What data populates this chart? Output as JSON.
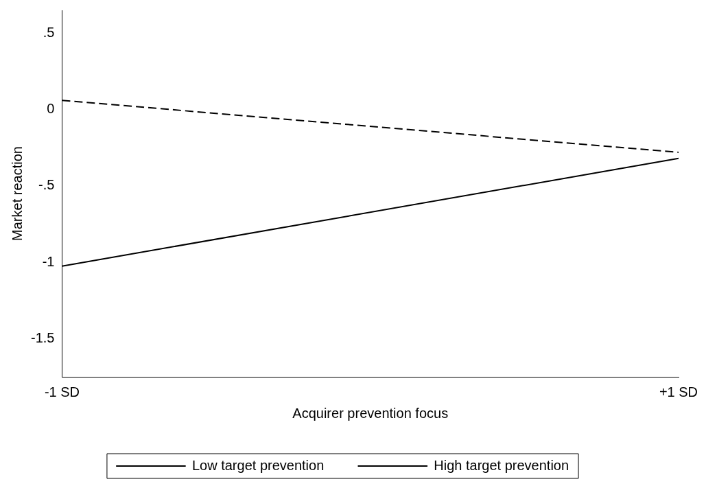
{
  "chart_data": {
    "type": "line",
    "xlabel": "Acquirer prevention focus",
    "ylabel": "Market reaction",
    "categories": [
      "-1 SD",
      "+1 SD"
    ],
    "series": [
      {
        "name": "Low target prevention",
        "color": "#000000",
        "values": [
          0.06,
          -0.28
        ],
        "line_style": "dashed"
      },
      {
        "name": "High target prevention",
        "color": "#000000",
        "values": [
          -1.025,
          -0.32
        ],
        "line_style": "solid"
      }
    ],
    "ylim": [
      -1.75,
      0.65
    ],
    "yticks": [
      {
        "value": -1.5,
        "label": "-1.5"
      },
      {
        "value": -1,
        "label": "-1"
      },
      {
        "value": -0.5,
        "label": "-.5"
      },
      {
        "value": 0,
        "label": "0"
      },
      {
        "value": 0.5,
        "label": ".5"
      }
    ],
    "grid": false,
    "legend": "bottom",
    "marker": "none"
  }
}
